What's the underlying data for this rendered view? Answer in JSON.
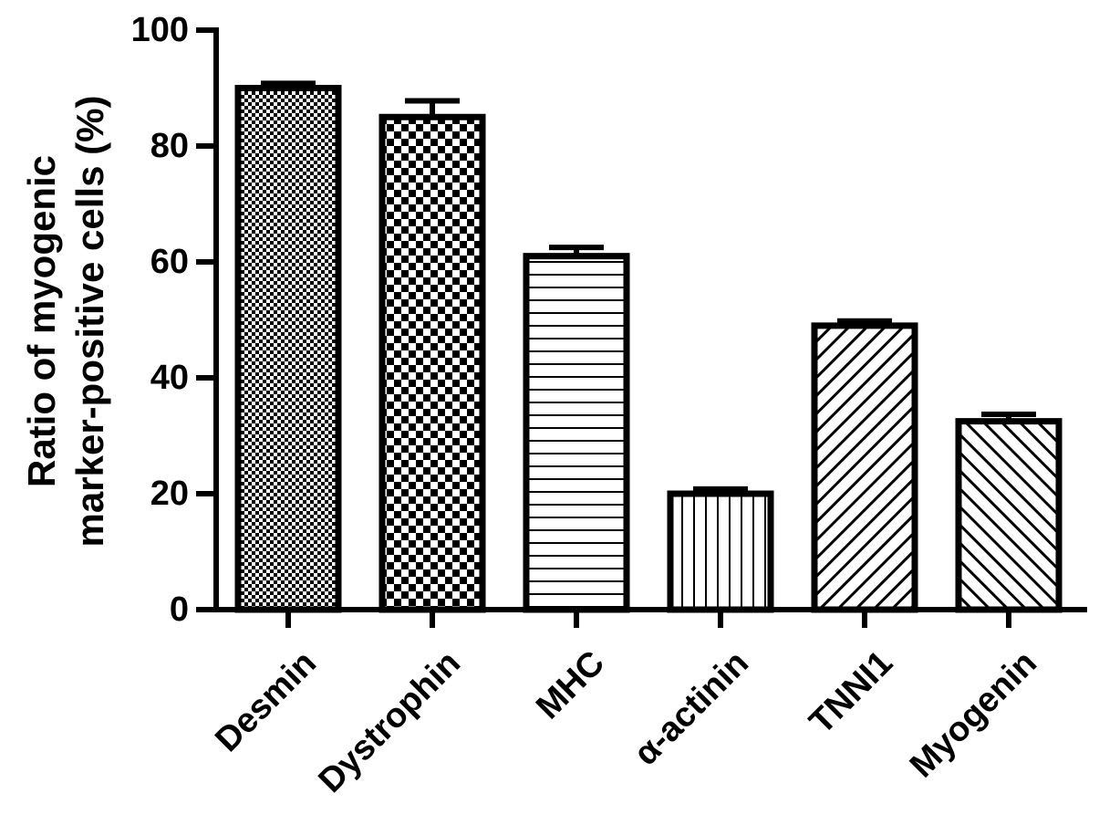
{
  "chart_data": {
    "type": "bar",
    "title": "",
    "xlabel": "",
    "ylabel_lines": [
      "Ratio of myogenic",
      "marker-positive cells (%)"
    ],
    "ylim": [
      0,
      100
    ],
    "yticks": [
      "0",
      "20",
      "40",
      "60",
      "80",
      "100"
    ],
    "grid": false,
    "legend": "none",
    "categories": [
      "Desmin",
      "Dystrophin",
      "MHC",
      "α-actinin",
      "TNNI1",
      "Myogenin"
    ],
    "values": [
      90,
      85,
      61,
      20,
      49,
      32.5
    ],
    "errors": [
      0.8,
      2.8,
      1.5,
      0.8,
      0.8,
      1.2
    ],
    "patterns": [
      "fine-checker",
      "coarse-checker",
      "horizontal-lines",
      "vertical-lines",
      "diagonal-up",
      "diagonal-down"
    ],
    "colors": {
      "ink": "#000000",
      "fill": "#ffffff"
    }
  }
}
